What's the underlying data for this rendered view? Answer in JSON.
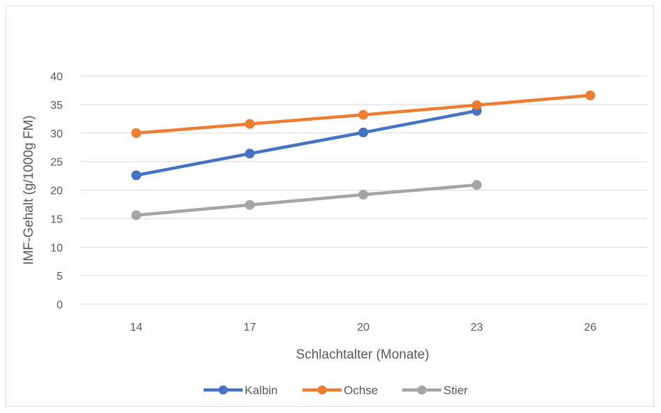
{
  "chart_data": {
    "type": "line",
    "title": "",
    "xlabel": "Schlachtalter (Monate)",
    "ylabel": "IMF-Gehalt (g/1000g FM)",
    "categories": [
      "14",
      "17",
      "20",
      "23",
      "26"
    ],
    "ylim": [
      0,
      40
    ],
    "yticks": [
      0,
      5,
      10,
      15,
      20,
      25,
      30,
      35,
      40
    ],
    "grid": true,
    "legend_position": "bottom",
    "series": [
      {
        "name": "Kalbin",
        "color": "#4472C4",
        "values": [
          22.6,
          26.4,
          30.1,
          33.9,
          null
        ]
      },
      {
        "name": "Ochse",
        "color": "#ED7D31",
        "values": [
          30.0,
          31.6,
          33.2,
          34.9,
          36.6
        ]
      },
      {
        "name": "Stier",
        "color": "#A5A5A5",
        "values": [
          15.6,
          17.4,
          19.2,
          20.9,
          null
        ]
      }
    ]
  }
}
